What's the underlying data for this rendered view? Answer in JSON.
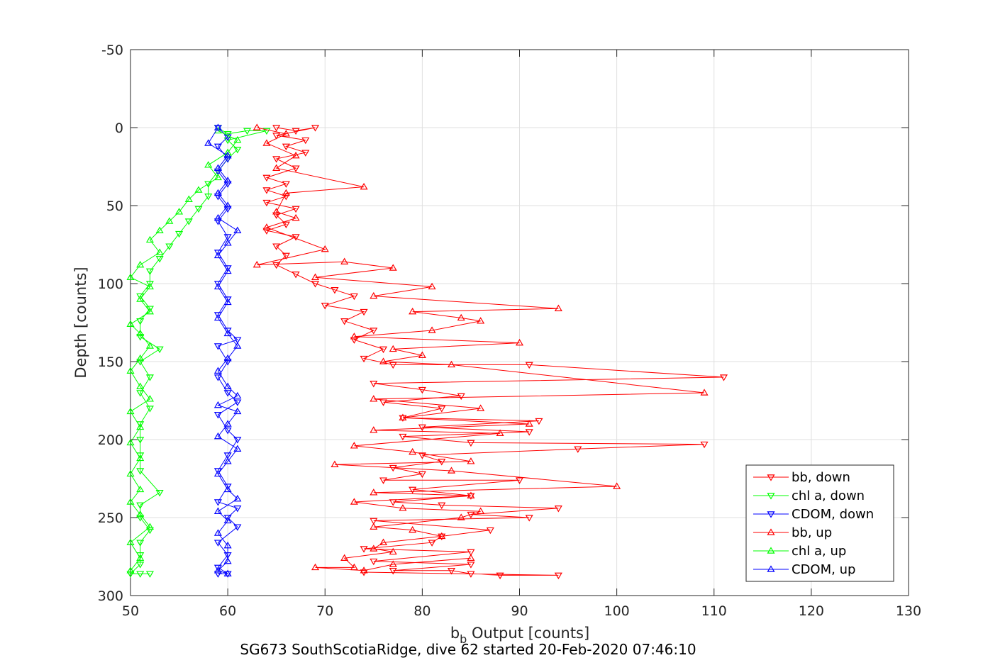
{
  "chart_data": {
    "type": "line",
    "title": "",
    "subtitle": "SG673 SouthScotiaRidge, dive 62 started 20-Feb-2020 07:46:10",
    "xlabel_main": "b",
    "xlabel_sub": "b",
    "xlabel_rest": " Output [counts]",
    "ylabel": "Depth [counts]",
    "xlim": [
      50,
      130
    ],
    "ylim": [
      -50,
      300
    ],
    "y_reversed": true,
    "grid": true,
    "legend_position": "bottom-right",
    "x_ticks": [
      "50",
      "60",
      "70",
      "80",
      "90",
      "100",
      "110",
      "120",
      "130"
    ],
    "y_ticks": [
      "-50",
      "0",
      "50",
      "100",
      "150",
      "200",
      "250",
      "300"
    ],
    "series": [
      {
        "name": "bb, down",
        "color": "#ff0000",
        "marker": "triangle-down",
        "points": [
          [
            65,
            0
          ],
          [
            67,
            2
          ],
          [
            69,
            0
          ],
          [
            65,
            5
          ],
          [
            68,
            8
          ],
          [
            66,
            12
          ],
          [
            68,
            16
          ],
          [
            65,
            20
          ],
          [
            67,
            26
          ],
          [
            64,
            32
          ],
          [
            66,
            36
          ],
          [
            64,
            40
          ],
          [
            66,
            44
          ],
          [
            64,
            48
          ],
          [
            67,
            52
          ],
          [
            65,
            56
          ],
          [
            66,
            62
          ],
          [
            64,
            66
          ],
          [
            67,
            70
          ],
          [
            65,
            76
          ],
          [
            66,
            82
          ],
          [
            65,
            88
          ],
          [
            67,
            94
          ],
          [
            69,
            100
          ],
          [
            71,
            104
          ],
          [
            73,
            108
          ],
          [
            70,
            114
          ],
          [
            74,
            118
          ],
          [
            72,
            124
          ],
          [
            75,
            130
          ],
          [
            73,
            136
          ],
          [
            76,
            142
          ],
          [
            74,
            148
          ],
          [
            77,
            152
          ],
          [
            91,
            152
          ],
          [
            111,
            160
          ],
          [
            75,
            164
          ],
          [
            80,
            168
          ],
          [
            84,
            172
          ],
          [
            76,
            176
          ],
          [
            82,
            180
          ],
          [
            78,
            186
          ],
          [
            92,
            188
          ],
          [
            80,
            192
          ],
          [
            91,
            195
          ],
          [
            78,
            198
          ],
          [
            85,
            202
          ],
          [
            109,
            203
          ],
          [
            96,
            206
          ],
          [
            80,
            210
          ],
          [
            82,
            214
          ],
          [
            77,
            218
          ],
          [
            80,
            222
          ],
          [
            76,
            226
          ],
          [
            90,
            226
          ],
          [
            79,
            232
          ],
          [
            85,
            236
          ],
          [
            77,
            240
          ],
          [
            82,
            242
          ],
          [
            94,
            244
          ],
          [
            85,
            248
          ],
          [
            91,
            250
          ],
          [
            75,
            252
          ],
          [
            87,
            258
          ],
          [
            82,
            262
          ],
          [
            81,
            266
          ],
          [
            74,
            270
          ],
          [
            85,
            272
          ],
          [
            75,
            278
          ],
          [
            85,
            280
          ],
          [
            77,
            284
          ],
          [
            83,
            284
          ],
          [
            85,
            286
          ],
          [
            88,
            287
          ],
          [
            94,
            287
          ],
          [
            74,
            285
          ]
        ]
      },
      {
        "name": "chl a, down",
        "color": "#00ff00",
        "marker": "triangle-down",
        "points": [
          [
            59,
            0
          ],
          [
            60,
            4
          ],
          [
            62,
            2
          ],
          [
            64,
            2
          ],
          [
            60,
            8
          ],
          [
            61,
            14
          ],
          [
            60,
            20
          ],
          [
            59,
            28
          ],
          [
            58,
            36
          ],
          [
            58,
            44
          ],
          [
            57,
            52
          ],
          [
            56,
            60
          ],
          [
            55,
            68
          ],
          [
            54,
            76
          ],
          [
            53,
            84
          ],
          [
            52,
            92
          ],
          [
            52,
            100
          ],
          [
            51,
            108
          ],
          [
            52,
            116
          ],
          [
            51,
            124
          ],
          [
            51,
            134
          ],
          [
            53,
            142
          ],
          [
            51,
            150
          ],
          [
            52,
            160
          ],
          [
            51,
            170
          ],
          [
            52,
            180
          ],
          [
            51,
            190
          ],
          [
            51,
            200
          ],
          [
            51,
            210
          ],
          [
            51,
            220
          ],
          [
            53,
            234
          ],
          [
            51,
            242
          ],
          [
            51,
            250
          ],
          [
            52,
            258
          ],
          [
            51,
            266
          ],
          [
            51,
            274
          ],
          [
            51,
            280
          ],
          [
            50,
            286
          ],
          [
            52,
            286
          ],
          [
            51,
            286
          ]
        ]
      },
      {
        "name": "CDOM, down",
        "color": "#0000ff",
        "marker": "triangle-down",
        "points": [
          [
            59,
            0
          ],
          [
            60,
            6
          ],
          [
            59,
            12
          ],
          [
            60,
            20
          ],
          [
            59,
            28
          ],
          [
            60,
            36
          ],
          [
            59,
            44
          ],
          [
            60,
            52
          ],
          [
            59,
            60
          ],
          [
            60,
            70
          ],
          [
            59,
            80
          ],
          [
            60,
            90
          ],
          [
            59,
            100
          ],
          [
            60,
            110
          ],
          [
            59,
            120
          ],
          [
            60,
            130
          ],
          [
            61,
            136
          ],
          [
            59,
            140
          ],
          [
            60,
            150
          ],
          [
            59,
            160
          ],
          [
            60,
            170
          ],
          [
            61,
            176
          ],
          [
            59,
            184
          ],
          [
            60,
            194
          ],
          [
            61,
            200
          ],
          [
            60,
            210
          ],
          [
            59,
            220
          ],
          [
            60,
            230
          ],
          [
            59,
            240
          ],
          [
            61,
            244
          ],
          [
            60,
            250
          ],
          [
            61,
            256
          ],
          [
            59,
            266
          ],
          [
            60,
            274
          ],
          [
            59,
            282
          ],
          [
            60,
            286
          ],
          [
            59,
            286
          ]
        ]
      },
      {
        "name": "bb, up",
        "color": "#ff0000",
        "marker": "triangle-up",
        "points": [
          [
            63,
            0
          ],
          [
            66,
            4
          ],
          [
            64,
            10
          ],
          [
            67,
            18
          ],
          [
            65,
            26
          ],
          [
            74,
            38
          ],
          [
            66,
            42
          ],
          [
            65,
            54
          ],
          [
            67,
            58
          ],
          [
            64,
            64
          ],
          [
            70,
            78
          ],
          [
            63,
            88
          ],
          [
            72,
            86
          ],
          [
            77,
            90
          ],
          [
            69,
            96
          ],
          [
            81,
            102
          ],
          [
            75,
            108
          ],
          [
            94,
            116
          ],
          [
            79,
            118
          ],
          [
            84,
            122
          ],
          [
            86,
            124
          ],
          [
            81,
            130
          ],
          [
            73,
            134
          ],
          [
            90,
            138
          ],
          [
            77,
            142
          ],
          [
            80,
            146
          ],
          [
            76,
            150
          ],
          [
            83,
            152
          ],
          [
            109,
            170
          ],
          [
            75,
            174
          ],
          [
            86,
            180
          ],
          [
            78,
            186
          ],
          [
            91,
            190
          ],
          [
            75,
            194
          ],
          [
            88,
            196
          ],
          [
            73,
            204
          ],
          [
            79,
            208
          ],
          [
            85,
            214
          ],
          [
            71,
            216
          ],
          [
            83,
            220
          ],
          [
            100,
            230
          ],
          [
            75,
            234
          ],
          [
            85,
            236
          ],
          [
            73,
            240
          ],
          [
            78,
            244
          ],
          [
            86,
            246
          ],
          [
            84,
            250
          ],
          [
            75,
            256
          ],
          [
            79,
            258
          ],
          [
            82,
            262
          ],
          [
            76,
            266
          ],
          [
            75,
            270
          ],
          [
            77,
            272
          ],
          [
            72,
            276
          ],
          [
            73,
            282
          ],
          [
            69,
            282
          ],
          [
            74,
            284
          ],
          [
            77,
            280
          ],
          [
            85,
            276
          ]
        ]
      },
      {
        "name": "chl a, up",
        "color": "#00ff00",
        "marker": "triangle-up",
        "points": [
          [
            59,
            2
          ],
          [
            61,
            8
          ],
          [
            60,
            16
          ],
          [
            58,
            24
          ],
          [
            59,
            32
          ],
          [
            57,
            40
          ],
          [
            56,
            46
          ],
          [
            55,
            54
          ],
          [
            54,
            60
          ],
          [
            53,
            66
          ],
          [
            52,
            72
          ],
          [
            53,
            80
          ],
          [
            51,
            88
          ],
          [
            50,
            96
          ],
          [
            52,
            102
          ],
          [
            51,
            110
          ],
          [
            52,
            118
          ],
          [
            50,
            126
          ],
          [
            51,
            132
          ],
          [
            52,
            140
          ],
          [
            51,
            148
          ],
          [
            50,
            156
          ],
          [
            51,
            166
          ],
          [
            52,
            174
          ],
          [
            50,
            182
          ],
          [
            51,
            192
          ],
          [
            50,
            202
          ],
          [
            51,
            212
          ],
          [
            50,
            222
          ],
          [
            51,
            232
          ],
          [
            50,
            240
          ],
          [
            51,
            248
          ],
          [
            52,
            256
          ],
          [
            50,
            266
          ],
          [
            51,
            276
          ],
          [
            50,
            284
          ]
        ]
      },
      {
        "name": "CDOM, up",
        "color": "#0000ff",
        "marker": "triangle-up",
        "points": [
          [
            59,
            0
          ],
          [
            58,
            10
          ],
          [
            60,
            18
          ],
          [
            59,
            26
          ],
          [
            60,
            34
          ],
          [
            59,
            42
          ],
          [
            60,
            50
          ],
          [
            59,
            58
          ],
          [
            61,
            66
          ],
          [
            60,
            74
          ],
          [
            59,
            82
          ],
          [
            60,
            92
          ],
          [
            59,
            102
          ],
          [
            60,
            112
          ],
          [
            59,
            122
          ],
          [
            60,
            132
          ],
          [
            61,
            140
          ],
          [
            60,
            148
          ],
          [
            59,
            156
          ],
          [
            60,
            166
          ],
          [
            61,
            172
          ],
          [
            59,
            178
          ],
          [
            61,
            182
          ],
          [
            60,
            190
          ],
          [
            59,
            198
          ],
          [
            61,
            206
          ],
          [
            60,
            214
          ],
          [
            59,
            222
          ],
          [
            60,
            232
          ],
          [
            61,
            238
          ],
          [
            59,
            246
          ],
          [
            60,
            252
          ],
          [
            59,
            260
          ],
          [
            60,
            268
          ],
          [
            60,
            278
          ],
          [
            59,
            284
          ],
          [
            60,
            286
          ]
        ]
      }
    ]
  }
}
